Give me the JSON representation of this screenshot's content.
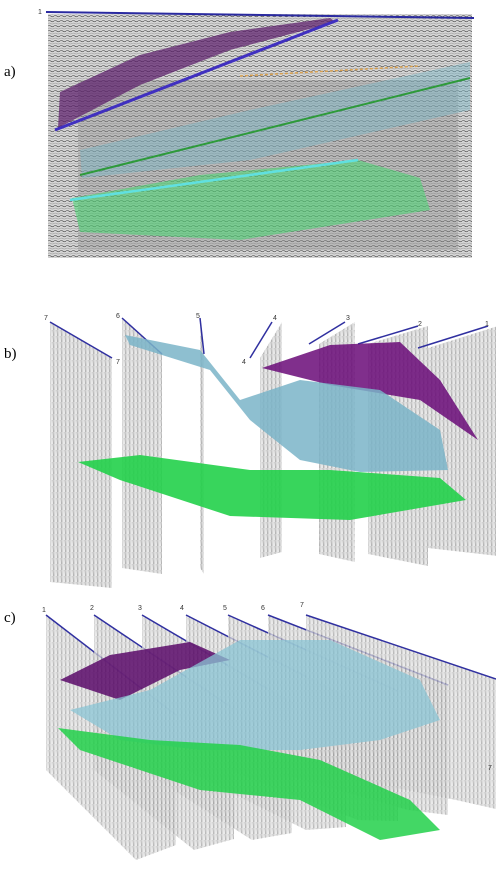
{
  "panels": [
    {
      "label": "a)",
      "line_labels": [
        "1"
      ]
    },
    {
      "label": "b)",
      "line_labels": [
        "7",
        "6",
        "5",
        "4",
        "3",
        "2",
        "1",
        "7",
        "4"
      ]
    },
    {
      "label": "c)",
      "line_labels": [
        "1",
        "2",
        "3",
        "4",
        "5",
        "6",
        "7",
        "7"
      ]
    }
  ]
}
